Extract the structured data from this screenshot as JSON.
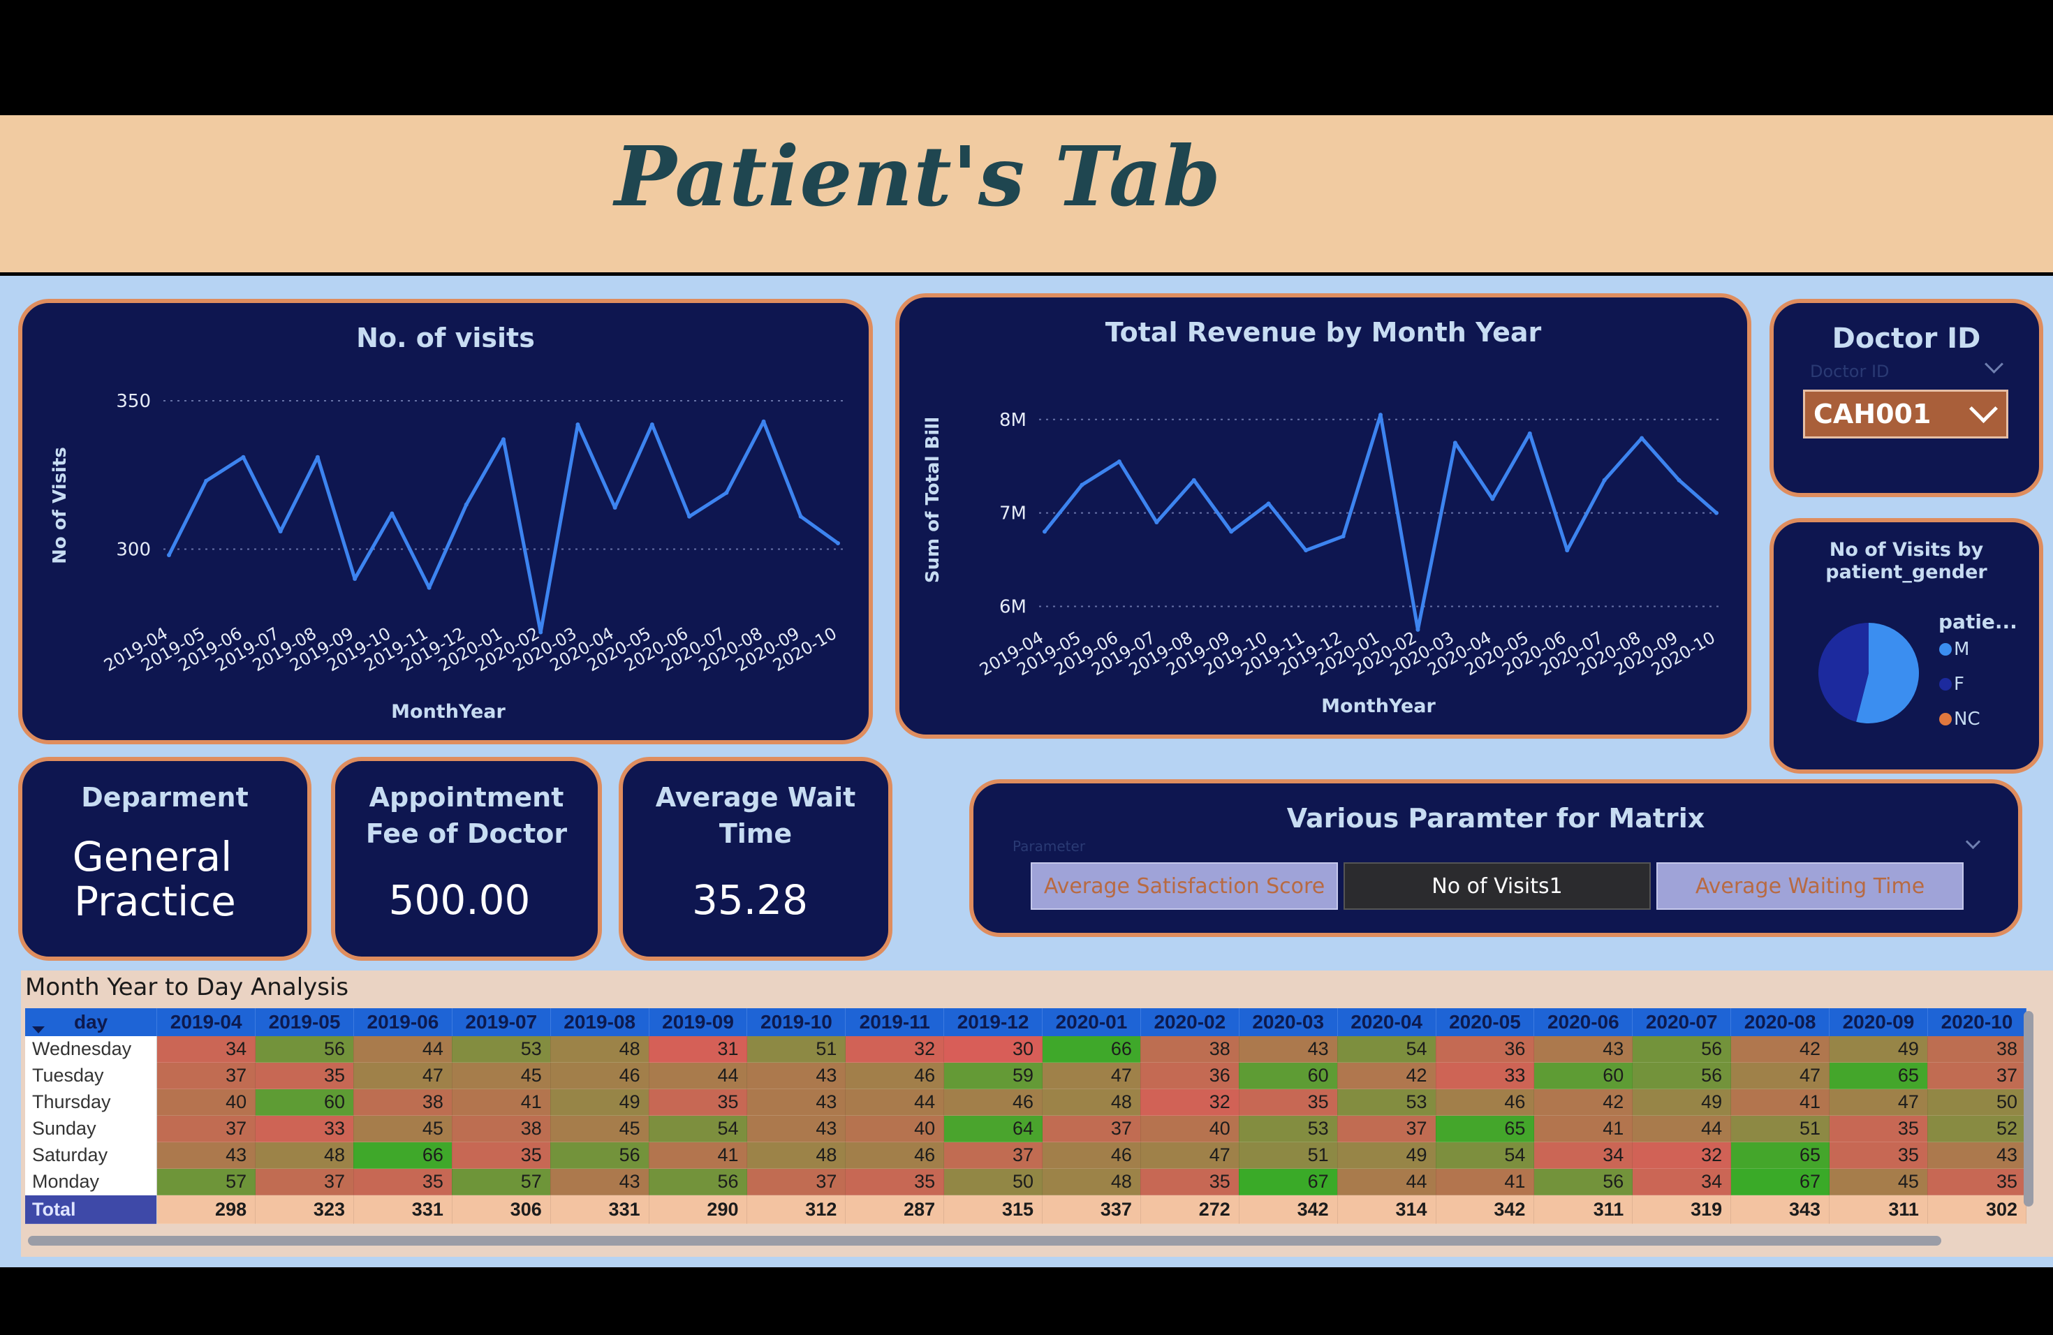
{
  "header": {
    "title": "Patient's Tab"
  },
  "visits_chart": {
    "title": "No. of visits",
    "xlabel": "MonthYear",
    "ylabel": "No of Visits",
    "yticks": [
      "350",
      "300"
    ]
  },
  "revenue_chart": {
    "title": "Total Revenue by Month Year",
    "xlabel": "MonthYear",
    "ylabel": "Sum of Total Bill",
    "yticks": [
      "8M",
      "7M",
      "6M"
    ]
  },
  "doctor_filter": {
    "title": "Doctor ID",
    "placeholder": "Doctor ID",
    "selected": "CAH001"
  },
  "gender_chart": {
    "title_line1": "No of Visits by",
    "title_line2": "patient_gender",
    "legend_title": "patie...",
    "legend": [
      {
        "label": "M",
        "color": "#3b8ef0"
      },
      {
        "label": "F",
        "color": "#1c2a9e"
      },
      {
        "label": "NC",
        "color": "#e0783e"
      }
    ]
  },
  "kpis": {
    "department": {
      "label": "Deparment",
      "value_line1": "General",
      "value_line2": "Practice"
    },
    "fee": {
      "label_line1": "Appointment",
      "label_line2": "Fee of Doctor",
      "value": "500.00"
    },
    "wait": {
      "label_line1": "Average Wait",
      "label_line2": "Time",
      "value": "35.28"
    }
  },
  "parameter": {
    "title": "Various Paramter for Matrix",
    "placeholder": "Parameter",
    "options": [
      {
        "label": "Average Satisfaction Score",
        "selected": false
      },
      {
        "label": "No of Visits1",
        "selected": true
      },
      {
        "label": "Average Waiting Time",
        "selected": false
      }
    ]
  },
  "matrix": {
    "title": "Month Year to Day Analysis",
    "corner": "day",
    "columns": [
      "2019-04",
      "2019-05",
      "2019-06",
      "2019-07",
      "2019-08",
      "2019-09",
      "2019-10",
      "2019-11",
      "2019-12",
      "2020-01",
      "2020-02",
      "2020-03",
      "2020-04",
      "2020-05",
      "2020-06",
      "2020-07",
      "2020-08",
      "2020-09",
      "2020-10"
    ],
    "rows": [
      {
        "day": "Wednesday",
        "values": [
          34,
          56,
          44,
          53,
          48,
          31,
          51,
          32,
          30,
          66,
          38,
          43,
          54,
          36,
          43,
          56,
          42,
          49,
          38
        ]
      },
      {
        "day": "Tuesday",
        "values": [
          37,
          35,
          47,
          45,
          46,
          44,
          43,
          46,
          59,
          47,
          36,
          60,
          42,
          33,
          60,
          56,
          47,
          65,
          37
        ]
      },
      {
        "day": "Thursday",
        "values": [
          40,
          60,
          38,
          41,
          49,
          35,
          43,
          44,
          46,
          48,
          32,
          35,
          53,
          46,
          42,
          49,
          41,
          47,
          50
        ]
      },
      {
        "day": "Sunday",
        "values": [
          37,
          33,
          45,
          38,
          45,
          54,
          43,
          40,
          64,
          37,
          40,
          53,
          37,
          65,
          41,
          44,
          51,
          35,
          52
        ]
      },
      {
        "day": "Saturday",
        "values": [
          43,
          48,
          66,
          35,
          56,
          41,
          48,
          46,
          37,
          46,
          47,
          51,
          49,
          54,
          34,
          32,
          65,
          35,
          43
        ]
      },
      {
        "day": "Monday",
        "values": [
          57,
          37,
          35,
          57,
          43,
          56,
          37,
          35,
          50,
          48,
          35,
          67,
          44,
          41,
          56,
          34,
          67,
          45,
          35
        ]
      }
    ],
    "total_label": "Total",
    "totals": [
      298,
      323,
      331,
      306,
      331,
      290,
      312,
      287,
      315,
      337,
      272,
      342,
      314,
      342,
      311,
      319,
      343,
      311,
      302
    ]
  },
  "chart_data": [
    {
      "type": "line",
      "title": "No. of visits",
      "xlabel": "MonthYear",
      "ylabel": "No of Visits",
      "x": [
        "2019-04",
        "2019-05",
        "2019-06",
        "2019-07",
        "2019-08",
        "2019-09",
        "2019-10",
        "2019-11",
        "2019-12",
        "2020-01",
        "2020-02",
        "2020-03",
        "2020-04",
        "2020-05",
        "2020-06",
        "2020-07",
        "2020-08",
        "2020-09",
        "2020-10"
      ],
      "values": [
        298,
        323,
        331,
        306,
        331,
        290,
        312,
        287,
        315,
        337,
        272,
        342,
        314,
        342,
        311,
        319,
        343,
        311,
        302
      ],
      "ylim": [
        270,
        350
      ],
      "grid": true,
      "color": "#3d84f0"
    },
    {
      "type": "line",
      "title": "Total Revenue by Month Year",
      "xlabel": "MonthYear",
      "ylabel": "Sum of Total Bill",
      "x": [
        "2019-04",
        "2019-05",
        "2019-06",
        "2019-07",
        "2019-08",
        "2019-09",
        "2019-10",
        "2019-11",
        "2019-12",
        "2020-01",
        "2020-02",
        "2020-03",
        "2020-04",
        "2020-05",
        "2020-06",
        "2020-07",
        "2020-08",
        "2020-09",
        "2020-10"
      ],
      "values": [
        6800000,
        7300000,
        7550000,
        6900000,
        7350000,
        6800000,
        7100000,
        6600000,
        6750000,
        8050000,
        5750000,
        7750000,
        7150000,
        7850000,
        6600000,
        7350000,
        7800000,
        7350000,
        7000000
      ],
      "ylim": [
        5600000,
        8200000
      ],
      "grid": true,
      "color": "#3d84f0"
    },
    {
      "type": "pie",
      "title": "No of Visits by patient_gender",
      "categories": [
        "M",
        "F",
        "NC"
      ],
      "values": [
        54,
        46,
        0
      ],
      "colors": [
        "#3b8ef0",
        "#1c2a9e",
        "#e0783e"
      ]
    }
  ]
}
